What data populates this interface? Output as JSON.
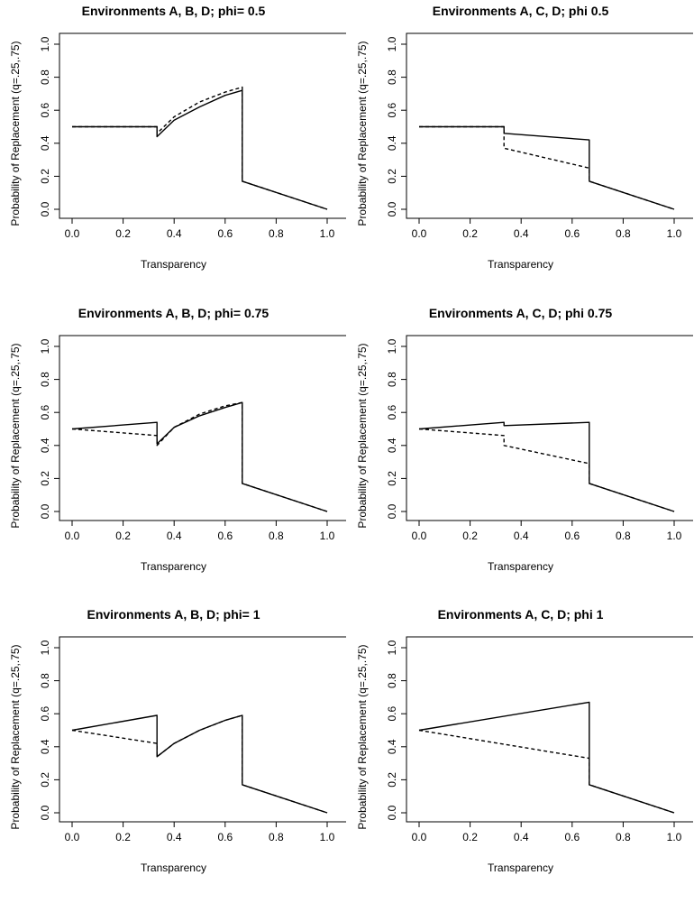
{
  "x_axis_label": "Transparency",
  "y_axis_label": "Probability of Replacement (q=.25,.75)",
  "x_ticks": [
    "0.0",
    "0.2",
    "0.4",
    "0.6",
    "0.8",
    "1.0"
  ],
  "y_ticks": [
    "0.0",
    "0.2",
    "0.4",
    "0.6",
    "0.8",
    "1.0"
  ],
  "chart_data": [
    {
      "type": "line",
      "title": "Environments A, B, D; phi= 0.5",
      "xlabel": "Transparency",
      "ylabel": "Probability of Replacement (q=.25,.75)",
      "xlim": [
        0,
        1
      ],
      "ylim": [
        0,
        1
      ],
      "series": [
        {
          "style": "solid",
          "x": [
            0.0,
            0.333,
            0.333,
            0.4,
            0.5,
            0.6,
            0.667,
            0.667,
            0.667,
            1.0
          ],
          "y": [
            0.5,
            0.5,
            0.44,
            0.54,
            0.62,
            0.69,
            0.72,
            0.45,
            0.17,
            0.0
          ]
        },
        {
          "style": "dashed",
          "x": [
            0.0,
            0.333,
            0.333,
            0.4,
            0.5,
            0.6,
            0.667,
            0.667,
            0.667,
            1.0
          ],
          "y": [
            0.5,
            0.5,
            0.46,
            0.56,
            0.65,
            0.71,
            0.74,
            0.45,
            0.17,
            0.0
          ]
        }
      ]
    },
    {
      "type": "line",
      "title": "Environments A, C, D; phi 0.5",
      "xlabel": "Transparency",
      "ylabel": "Probability of Replacement (q=.25,.75)",
      "xlim": [
        0,
        1
      ],
      "ylim": [
        0,
        1
      ],
      "series": [
        {
          "style": "solid",
          "x": [
            0.0,
            0.333,
            0.333,
            0.667,
            0.667,
            1.0
          ],
          "y": [
            0.5,
            0.5,
            0.46,
            0.42,
            0.17,
            0.0
          ]
        },
        {
          "style": "dashed",
          "x": [
            0.0,
            0.333,
            0.333,
            0.667,
            0.667,
            1.0
          ],
          "y": [
            0.5,
            0.5,
            0.37,
            0.25,
            0.17,
            0.0
          ]
        }
      ]
    },
    {
      "type": "line",
      "title": "Environments A, B, D; phi= 0.75",
      "xlabel": "Transparency",
      "ylabel": "Probability of Replacement (q=.25,.75)",
      "xlim": [
        0,
        1
      ],
      "ylim": [
        0,
        1
      ],
      "series": [
        {
          "style": "solid",
          "x": [
            0.0,
            0.333,
            0.333,
            0.4,
            0.5,
            0.6,
            0.667,
            0.667,
            0.667,
            1.0
          ],
          "y": [
            0.5,
            0.54,
            0.41,
            0.51,
            0.58,
            0.63,
            0.66,
            0.4,
            0.17,
            0.0
          ]
        },
        {
          "style": "dashed",
          "x": [
            0.0,
            0.333,
            0.333,
            0.4,
            0.5,
            0.6,
            0.667,
            0.667,
            0.667,
            1.0
          ],
          "y": [
            0.5,
            0.46,
            0.4,
            0.51,
            0.59,
            0.64,
            0.66,
            0.4,
            0.17,
            0.0
          ]
        }
      ]
    },
    {
      "type": "line",
      "title": "Environments A, C, D; phi 0.75",
      "xlabel": "Transparency",
      "ylabel": "Probability of Replacement (q=.25,.75)",
      "xlim": [
        0,
        1
      ],
      "ylim": [
        0,
        1
      ],
      "series": [
        {
          "style": "solid",
          "x": [
            0.0,
            0.333,
            0.333,
            0.667,
            0.667,
            1.0
          ],
          "y": [
            0.5,
            0.54,
            0.52,
            0.54,
            0.17,
            0.0
          ]
        },
        {
          "style": "dashed",
          "x": [
            0.0,
            0.333,
            0.333,
            0.667,
            0.667,
            1.0
          ],
          "y": [
            0.5,
            0.46,
            0.4,
            0.29,
            0.17,
            0.0
          ]
        }
      ]
    },
    {
      "type": "line",
      "title": "Environments A, B, D; phi= 1",
      "xlabel": "Transparency",
      "ylabel": "Probability of Replacement (q=.25,.75)",
      "xlim": [
        0,
        1
      ],
      "ylim": [
        0,
        1
      ],
      "series": [
        {
          "style": "solid",
          "x": [
            0.0,
            0.333,
            0.333,
            0.4,
            0.5,
            0.6,
            0.667,
            0.667,
            1.0
          ],
          "y": [
            0.5,
            0.59,
            0.34,
            0.42,
            0.5,
            0.56,
            0.59,
            0.17,
            0.0
          ]
        },
        {
          "style": "dashed",
          "x": [
            0.0,
            0.333,
            0.333,
            0.4,
            0.5,
            0.6,
            0.667,
            0.667,
            1.0
          ],
          "y": [
            0.5,
            0.42,
            0.34,
            0.42,
            0.5,
            0.56,
            0.59,
            0.17,
            0.0
          ]
        }
      ]
    },
    {
      "type": "line",
      "title": "Environments A, C, D; phi 1",
      "xlabel": "Transparency",
      "ylabel": "Probability of Replacement (q=.25,.75)",
      "xlim": [
        0,
        1
      ],
      "ylim": [
        0,
        1
      ],
      "series": [
        {
          "style": "solid",
          "x": [
            0.0,
            0.667,
            0.667,
            1.0
          ],
          "y": [
            0.5,
            0.67,
            0.17,
            0.0
          ]
        },
        {
          "style": "dashed",
          "x": [
            0.0,
            0.667,
            0.667,
            0.667,
            1.0
          ],
          "y": [
            0.5,
            0.33,
            0.25,
            0.17,
            0.0
          ]
        }
      ]
    }
  ]
}
